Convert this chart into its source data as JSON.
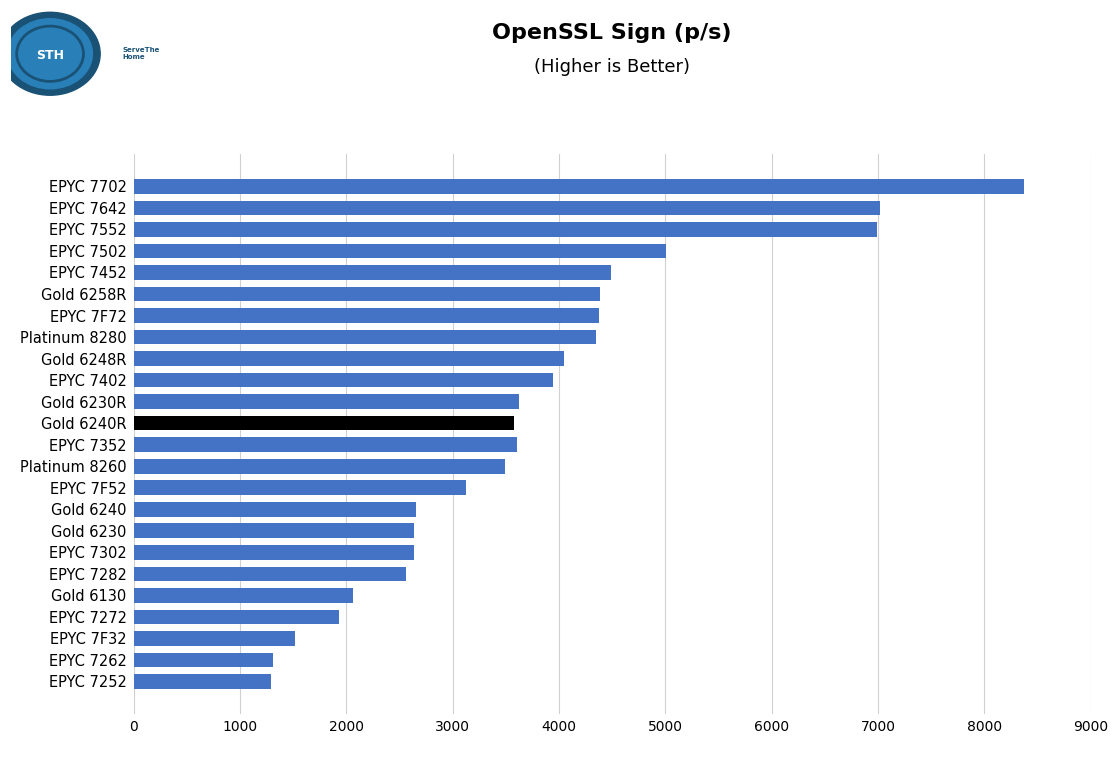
{
  "title": "OpenSSL Sign (p/s)",
  "subtitle": "(Higher is Better)",
  "categories": [
    "EPYC 7702",
    "EPYC 7642",
    "EPYC 7552",
    "EPYC 7502",
    "EPYC 7452",
    "Gold 6258R",
    "EPYC 7F72",
    "Platinum 8280",
    "Gold 6248R",
    "EPYC 7402",
    "Gold 6230R",
    "Gold 6240R",
    "EPYC 7352",
    "Platinum 8260",
    "EPYC 7F52",
    "Gold 6240",
    "Gold 6230",
    "EPYC 7302",
    "EPYC 7282",
    "Gold 6130",
    "EPYC 7272",
    "EPYC 7F32",
    "EPYC 7262",
    "EPYC 7252"
  ],
  "values": [
    8370,
    7020,
    6990,
    5010,
    4490,
    4390,
    4380,
    4350,
    4050,
    3940,
    3620,
    3580,
    3610,
    3490,
    3130,
    2660,
    2640,
    2640,
    2560,
    2060,
    1930,
    1520,
    1310,
    1290
  ],
  "bar_color_default": "#4472C4",
  "bar_color_highlight": "#000000",
  "highlight_index": 11,
  "xlim": [
    0,
    9000
  ],
  "xticks": [
    0,
    1000,
    2000,
    3000,
    4000,
    5000,
    6000,
    7000,
    8000,
    9000
  ],
  "title_fontsize": 16,
  "subtitle_fontsize": 13,
  "tick_fontsize": 10,
  "label_fontsize": 10.5,
  "background_color": "#ffffff",
  "grid_color": "#d0d0d0"
}
